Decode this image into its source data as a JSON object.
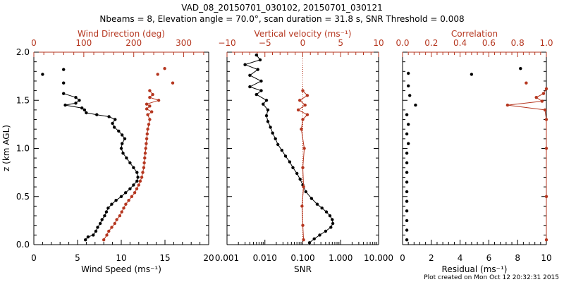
{
  "title_line1": "VAD_08_20150701_030102, 20150701_030121",
  "title_line2": "Nbeams = 8, Elevation angle = 70.0°, scan duration = 31.8 s, SNR Threshold = 0.008",
  "footer": "Plot created on Mon Oct 12 20:32:31 2015",
  "colors": {
    "black": "#000000",
    "red": "#b5361f"
  },
  "chart_data": [
    {
      "type": "line",
      "ylabel": "z (km AGL)",
      "ylim": [
        0,
        2.0
      ],
      "yticks": [
        "0.0",
        "0.5",
        "1.0",
        "1.5",
        "2.0"
      ],
      "bottom_axis": {
        "label": "Wind Speed (ms⁻¹)",
        "range": [
          0,
          20
        ],
        "ticks": [
          "0",
          "5",
          "10",
          "15",
          "20"
        ]
      },
      "top_axis": {
        "label": "Wind Direction (deg)",
        "range": [
          0,
          350
        ],
        "ticks": [
          "0",
          "100",
          "200",
          "300"
        ]
      },
      "series": [
        {
          "color": "black",
          "axis": "bottom",
          "points": [
            [
              5.9,
              0.05
            ],
            [
              6.2,
              0.08
            ],
            [
              6.8,
              0.1
            ],
            [
              7.1,
              0.14
            ],
            [
              7.3,
              0.18
            ],
            [
              7.6,
              0.22
            ],
            [
              7.8,
              0.26
            ],
            [
              8.1,
              0.3
            ],
            [
              8.3,
              0.34
            ],
            [
              8.5,
              0.38
            ],
            [
              8.9,
              0.42
            ],
            [
              9.4,
              0.46
            ],
            [
              10.0,
              0.5
            ],
            [
              10.5,
              0.54
            ],
            [
              11.0,
              0.58
            ],
            [
              11.4,
              0.62
            ],
            [
              11.8,
              0.66
            ],
            [
              11.9,
              0.7
            ],
            [
              11.8,
              0.75
            ],
            [
              11.4,
              0.8
            ],
            [
              11.0,
              0.85
            ],
            [
              10.6,
              0.9
            ],
            [
              10.2,
              0.95
            ],
            [
              10.0,
              1.0
            ],
            [
              10.1,
              1.05
            ],
            [
              10.4,
              1.1
            ],
            [
              10.1,
              1.14
            ],
            [
              9.7,
              1.18
            ],
            [
              9.2,
              1.22
            ],
            [
              9.0,
              1.26
            ],
            [
              9.3,
              1.3
            ],
            [
              8.6,
              1.33
            ],
            [
              7.2,
              1.35
            ],
            [
              6.0,
              1.37
            ],
            [
              5.8,
              1.4
            ],
            [
              5.5,
              1.42
            ],
            [
              3.6,
              1.45
            ],
            [
              4.8,
              1.47
            ],
            [
              5.2,
              1.5
            ],
            [
              4.8,
              1.53
            ],
            [
              3.4,
              1.57
            ]
          ]
        },
        {
          "color": "black",
          "axis": "bottom",
          "mode": "markers",
          "points": [
            [
              1.0,
              1.77
            ],
            [
              3.4,
              1.82
            ],
            [
              3.4,
              1.68
            ]
          ]
        },
        {
          "color": "red",
          "axis": "top",
          "points": [
            [
              140,
              0.05
            ],
            [
              146,
              0.1
            ],
            [
              150,
              0.14
            ],
            [
              156,
              0.18
            ],
            [
              162,
              0.22
            ],
            [
              166,
              0.26
            ],
            [
              172,
              0.3
            ],
            [
              176,
              0.34
            ],
            [
              180,
              0.38
            ],
            [
              184,
              0.42
            ],
            [
              190,
              0.46
            ],
            [
              196,
              0.5
            ],
            [
              202,
              0.54
            ],
            [
              206,
              0.58
            ],
            [
              210,
              0.62
            ],
            [
              213,
              0.66
            ],
            [
              216,
              0.7
            ],
            [
              218,
              0.75
            ],
            [
              220,
              0.8
            ],
            [
              221,
              0.85
            ],
            [
              222,
              0.9
            ],
            [
              223,
              0.95
            ],
            [
              224,
              1.0
            ],
            [
              225,
              1.05
            ],
            [
              226,
              1.1
            ],
            [
              227,
              1.15
            ],
            [
              228,
              1.2
            ],
            [
              230,
              1.25
            ],
            [
              232,
              1.3
            ],
            [
              228,
              1.35
            ],
            [
              236,
              1.38
            ],
            [
              226,
              1.41
            ],
            [
              232,
              1.44
            ],
            [
              226,
              1.46
            ],
            [
              250,
              1.5
            ],
            [
              232,
              1.53
            ],
            [
              238,
              1.56
            ],
            [
              232,
              1.6
            ]
          ]
        },
        {
          "color": "red",
          "axis": "top",
          "mode": "markers",
          "points": [
            [
              262,
              1.83
            ],
            [
              248,
              1.77
            ],
            [
              278,
              1.68
            ]
          ]
        }
      ]
    },
    {
      "type": "line",
      "ylim": [
        0,
        2.0
      ],
      "bottom_axis": {
        "label": "SNR",
        "range": [
          0.001,
          10
        ],
        "scale": "log",
        "ticks": [
          "0.001",
          "0.010",
          "0.100",
          "1.000",
          "10.000"
        ]
      },
      "top_axis": {
        "label": "Vertical velocity (ms⁻¹)",
        "range": [
          -10,
          10
        ],
        "ticks": [
          "−10",
          "−5",
          "0",
          "5",
          "10"
        ]
      },
      "series": [
        {
          "color": "black",
          "axis": "bottom",
          "points": [
            [
              0.15,
              0.02
            ],
            [
              0.2,
              0.06
            ],
            [
              0.28,
              0.1
            ],
            [
              0.4,
              0.14
            ],
            [
              0.55,
              0.18
            ],
            [
              0.62,
              0.22
            ],
            [
              0.6,
              0.26
            ],
            [
              0.52,
              0.3
            ],
            [
              0.42,
              0.34
            ],
            [
              0.32,
              0.38
            ],
            [
              0.24,
              0.42
            ],
            [
              0.17,
              0.48
            ],
            [
              0.12,
              0.55
            ],
            [
              0.1,
              0.62
            ],
            [
              0.085,
              0.68
            ],
            [
              0.07,
              0.74
            ],
            [
              0.055,
              0.8
            ],
            [
              0.045,
              0.86
            ],
            [
              0.035,
              0.92
            ],
            [
              0.028,
              0.98
            ],
            [
              0.022,
              1.04
            ],
            [
              0.019,
              1.1
            ],
            [
              0.016,
              1.16
            ],
            [
              0.014,
              1.22
            ],
            [
              0.012,
              1.28
            ],
            [
              0.011,
              1.34
            ],
            [
              0.012,
              1.4
            ],
            [
              0.009,
              1.46
            ],
            [
              0.011,
              1.5
            ],
            [
              0.006,
              1.56
            ],
            [
              0.008,
              1.6
            ],
            [
              0.004,
              1.64
            ],
            [
              0.008,
              1.7
            ],
            [
              0.004,
              1.76
            ],
            [
              0.0065,
              1.82
            ],
            [
              0.003,
              1.87
            ],
            [
              0.0075,
              1.92
            ],
            [
              0.006,
              1.97
            ]
          ]
        },
        {
          "color": "red",
          "axis": "top",
          "points": [
            [
              0.1,
              0.05
            ],
            [
              0.0,
              0.2
            ],
            [
              -0.1,
              0.4
            ],
            [
              0.1,
              0.6
            ],
            [
              0.0,
              0.8
            ],
            [
              0.2,
              1.0
            ],
            [
              -0.2,
              1.2
            ],
            [
              0.0,
              1.3
            ],
            [
              0.6,
              1.35
            ],
            [
              -0.6,
              1.4
            ],
            [
              0.3,
              1.45
            ],
            [
              -0.4,
              1.5
            ],
            [
              0.6,
              1.55
            ],
            [
              0.0,
              1.6
            ]
          ]
        }
      ]
    },
    {
      "type": "line",
      "ylim": [
        0,
        2.0
      ],
      "bottom_axis": {
        "label": "Residual (ms⁻¹)",
        "range": [
          0,
          10
        ],
        "ticks": [
          "0",
          "2",
          "4",
          "6",
          "8",
          "10"
        ]
      },
      "top_axis": {
        "label": "Correlation",
        "range": [
          0,
          1.0
        ],
        "ticks": [
          "0.0",
          "0.2",
          "0.4",
          "0.6",
          "0.8",
          "1.0"
        ]
      },
      "series": [
        {
          "color": "black",
          "axis": "bottom",
          "mode": "markers",
          "points": [
            [
              0.3,
              0.05
            ],
            [
              0.3,
              0.15
            ],
            [
              0.3,
              0.25
            ],
            [
              0.3,
              0.35
            ],
            [
              0.3,
              0.45
            ],
            [
              0.3,
              0.55
            ],
            [
              0.3,
              0.65
            ],
            [
              0.3,
              0.75
            ],
            [
              0.3,
              0.85
            ],
            [
              0.3,
              0.95
            ],
            [
              0.4,
              1.05
            ],
            [
              0.3,
              1.15
            ],
            [
              0.4,
              1.25
            ],
            [
              0.3,
              1.35
            ],
            [
              0.9,
              1.45
            ],
            [
              0.5,
              1.55
            ],
            [
              0.4,
              1.65
            ],
            [
              4.8,
              1.77
            ],
            [
              0.4,
              1.78
            ],
            [
              8.2,
              1.83
            ]
          ]
        },
        {
          "color": "red",
          "axis": "top",
          "points": [
            [
              1.0,
              0.05
            ],
            [
              1.0,
              0.5
            ],
            [
              1.0,
              1.0
            ],
            [
              1.0,
              1.3
            ],
            [
              0.99,
              1.4
            ],
            [
              0.73,
              1.45
            ],
            [
              0.97,
              1.49
            ],
            [
              0.93,
              1.53
            ],
            [
              0.98,
              1.57
            ],
            [
              1.0,
              1.62
            ]
          ]
        },
        {
          "color": "red",
          "axis": "top",
          "mode": "markers",
          "points": [
            [
              0.86,
              1.68
            ]
          ]
        }
      ]
    }
  ]
}
